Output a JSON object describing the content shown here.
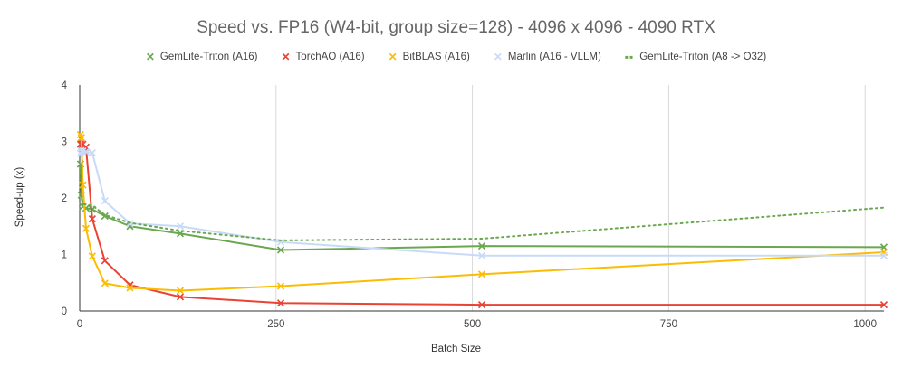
{
  "chart_data": {
    "type": "line",
    "title": "Speed vs. FP16 (W4-bit, group size=128) - 4096 x 4096 - 4090 RTX",
    "xlabel": "Batch Size",
    "ylabel": "Speed-up (x)",
    "xlim": [
      0,
      1024
    ],
    "ylim": [
      0,
      4
    ],
    "xticks": [
      0,
      250,
      500,
      750,
      1000
    ],
    "yticks": [
      0,
      1,
      2,
      3,
      4
    ],
    "x_tick_labels": [
      "0",
      "250",
      "500",
      "750",
      "1000"
    ],
    "y_tick_labels": [
      "0",
      "1",
      "2",
      "3",
      "4"
    ],
    "grid": "vertical gridlines",
    "legend_position": "top",
    "x": [
      1,
      2,
      4,
      8,
      16,
      32,
      64,
      128,
      256,
      512,
      1024
    ],
    "series": [
      {
        "name": "GemLite-Triton (A16)",
        "color": "#6aa84f",
        "style": "solid",
        "marker": "x",
        "values": [
          2.6,
          2.05,
          1.85,
          1.82,
          1.8,
          1.68,
          1.5,
          1.37,
          1.08,
          1.15,
          1.13
        ]
      },
      {
        "name": "TorchAO (A16)",
        "color": "#ea4335",
        "style": "solid",
        "marker": "x",
        "values": [
          2.95,
          2.97,
          2.95,
          2.9,
          1.63,
          0.89,
          0.46,
          0.25,
          0.14,
          0.11,
          0.11
        ]
      },
      {
        "name": "BitBLAS (A16)",
        "color": "#fbbc04",
        "style": "solid",
        "marker": "x",
        "values": [
          3.12,
          3.07,
          2.23,
          1.46,
          0.97,
          0.49,
          0.41,
          0.36,
          0.44,
          0.65,
          1.04
        ]
      },
      {
        "name": "Marlin (A16 - VLLM)",
        "color": "#c9daf8",
        "style": "solid",
        "marker": "x",
        "values": [
          2.79,
          2.82,
          2.83,
          2.82,
          2.8,
          1.95,
          1.55,
          1.5,
          1.22,
          0.98,
          0.98
        ]
      },
      {
        "name": "GemLite-Triton (A8 -> O32)",
        "color": "#6aa84f",
        "style": "dotted",
        "marker": "none",
        "values": [
          2.55,
          2.05,
          1.9,
          1.88,
          1.87,
          1.7,
          1.56,
          1.42,
          1.25,
          1.28,
          1.83
        ]
      }
    ]
  }
}
